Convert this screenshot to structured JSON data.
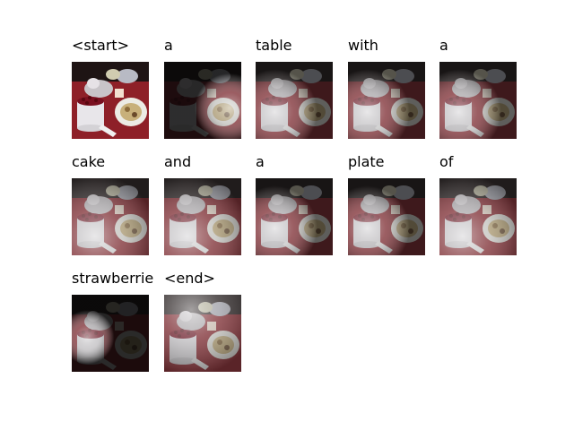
{
  "attention_figure": {
    "tokens": [
      {
        "word": "<start>",
        "attention": "original"
      },
      {
        "word": "a",
        "attention": "table-right"
      },
      {
        "word": "table",
        "attention": "cake-left"
      },
      {
        "word": "with",
        "attention": "cake-left"
      },
      {
        "word": "a",
        "attention": "cake-left"
      },
      {
        "word": "cake",
        "attention": "diffuse-bottom"
      },
      {
        "word": "and",
        "attention": "diffuse-bottom"
      },
      {
        "word": "a",
        "attention": "cake-left"
      },
      {
        "word": "plate",
        "attention": "cake-left"
      },
      {
        "word": "of",
        "attention": "diffuse-bottom"
      },
      {
        "word": "strawberrie",
        "attention": "cake-left-tight"
      },
      {
        "word": "<end>",
        "attention": "diffuse-top"
      }
    ]
  }
}
